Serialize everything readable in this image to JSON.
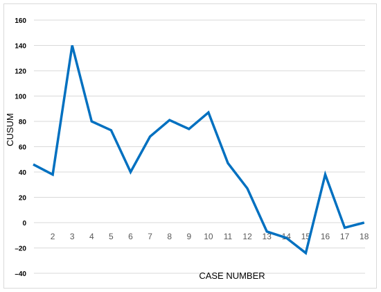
{
  "chart_data": {
    "type": "line",
    "title": "",
    "xlabel": "CASE NUMBER",
    "ylabel": "CUSUM",
    "ylim": [
      -40,
      160
    ],
    "yticks": [
      160,
      140,
      120,
      100,
      80,
      60,
      40,
      20,
      0,
      -20,
      -40
    ],
    "ytick_labels": [
      "160",
      "140",
      "120",
      "100",
      "80",
      "60",
      "40",
      "20",
      "0",
      "–20",
      "–40"
    ],
    "x_tick_labels": [
      "2",
      "3",
      "4",
      "5",
      "6",
      "7",
      "8",
      "9",
      "10",
      "11",
      "12",
      "13",
      "14",
      "15",
      "16",
      "17",
      "18"
    ],
    "x": [
      1,
      2,
      3,
      4,
      5,
      6,
      7,
      8,
      9,
      10,
      11,
      12,
      13,
      14,
      15,
      16,
      17,
      18
    ],
    "series": [
      {
        "values": [
          46,
          38,
          140,
          80,
          73,
          40,
          68,
          81,
          74,
          87,
          47,
          27,
          -7,
          -12,
          -24,
          38,
          -4,
          0
        ],
        "color": "#0070c0"
      }
    ],
    "grid": "horizontal",
    "legend": "none"
  }
}
